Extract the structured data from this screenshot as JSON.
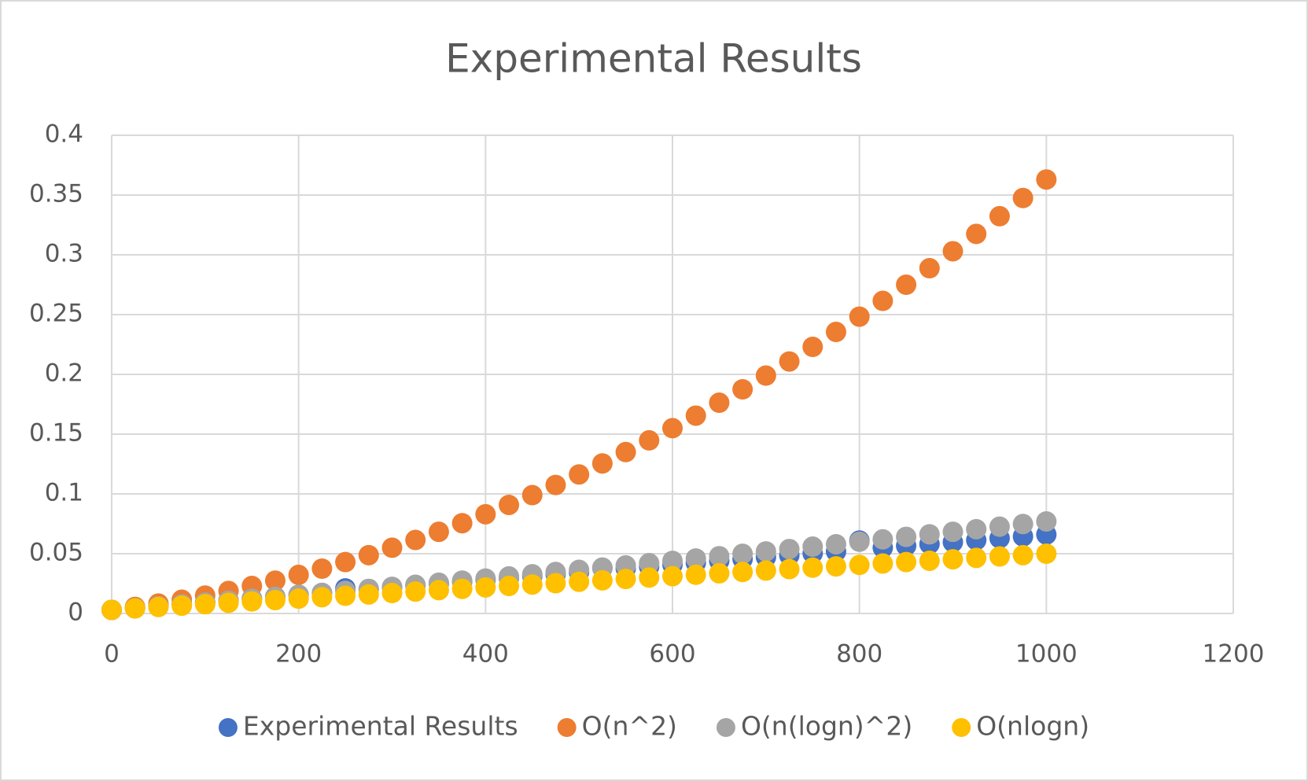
{
  "chart_data": {
    "type": "scatter",
    "title": "Experimental Results",
    "x": [
      0,
      25,
      50,
      75,
      100,
      125,
      150,
      175,
      200,
      225,
      250,
      275,
      300,
      325,
      350,
      375,
      400,
      425,
      450,
      475,
      500,
      525,
      550,
      575,
      600,
      625,
      650,
      675,
      700,
      725,
      750,
      775,
      800,
      825,
      850,
      875,
      900,
      925,
      950,
      975,
      1000
    ],
    "series": [
      {
        "name": "Experimental Results",
        "color": "#4472c4",
        "values": [
          0.003,
          0.0046,
          0.0062,
          0.0077,
          0.0093,
          0.0109,
          0.0125,
          0.014,
          0.0156,
          0.0172,
          0.021,
          0.0203,
          0.0219,
          0.0235,
          0.0251,
          0.0266,
          0.0282,
          0.0298,
          0.0314,
          0.0329,
          0.0345,
          0.038,
          0.0377,
          0.0392,
          0.0408,
          0.0424,
          0.044,
          0.0455,
          0.0471,
          0.0487,
          0.0503,
          0.0518,
          0.061,
          0.055,
          0.0566,
          0.0581,
          0.0597,
          0.0613,
          0.0629,
          0.0644,
          0.066
        ]
      },
      {
        "name": "O(n^2)",
        "color": "#ed7d31",
        "values": [
          0.003,
          0.0055,
          0.0083,
          0.0115,
          0.015,
          0.0188,
          0.023,
          0.0275,
          0.0323,
          0.0375,
          0.043,
          0.0488,
          0.055,
          0.0615,
          0.0683,
          0.0755,
          0.083,
          0.0908,
          0.099,
          0.1075,
          0.1163,
          0.1255,
          0.135,
          0.1448,
          0.155,
          0.1655,
          0.1763,
          0.1875,
          0.199,
          0.2108,
          0.223,
          0.2355,
          0.2483,
          0.2615,
          0.275,
          0.2888,
          0.303,
          0.3175,
          0.3323,
          0.3475,
          0.363
        ]
      },
      {
        "name": "O(n(logn)^2)",
        "color": "#a5a5a5",
        "values": [
          0.003,
          0.0045,
          0.006,
          0.0076,
          0.0091,
          0.0107,
          0.0123,
          0.0139,
          0.0156,
          0.0172,
          0.0189,
          0.0206,
          0.0223,
          0.024,
          0.0257,
          0.0275,
          0.0292,
          0.031,
          0.0328,
          0.0347,
          0.0365,
          0.0384,
          0.0402,
          0.0421,
          0.044,
          0.046,
          0.0479,
          0.0499,
          0.0519,
          0.0539,
          0.0559,
          0.0579,
          0.06,
          0.062,
          0.0641,
          0.0662,
          0.0683,
          0.0705,
          0.0726,
          0.0748,
          0.077
        ]
      },
      {
        "name": "O(nlogn)",
        "color": "#ffc000",
        "values": [
          0.003,
          0.0042,
          0.0054,
          0.0065,
          0.0077,
          0.0089,
          0.0101,
          0.0112,
          0.0124,
          0.0136,
          0.0148,
          0.0159,
          0.0171,
          0.0183,
          0.0195,
          0.0206,
          0.0218,
          0.023,
          0.0242,
          0.0253,
          0.0265,
          0.0277,
          0.0289,
          0.03,
          0.0312,
          0.0324,
          0.0336,
          0.0347,
          0.0359,
          0.0371,
          0.0383,
          0.0394,
          0.0406,
          0.0418,
          0.043,
          0.0441,
          0.0453,
          0.0465,
          0.0477,
          0.0488,
          0.05
        ]
      }
    ],
    "xlim": [
      0,
      1200
    ],
    "xticks": [
      0,
      200,
      400,
      600,
      800,
      1000,
      1200
    ],
    "ylim": [
      0,
      0.4
    ],
    "yticks": [
      0,
      0.05,
      0.1,
      0.15,
      0.2,
      0.25,
      0.3,
      0.35,
      0.4
    ],
    "grid": true,
    "legend": "bottom"
  }
}
